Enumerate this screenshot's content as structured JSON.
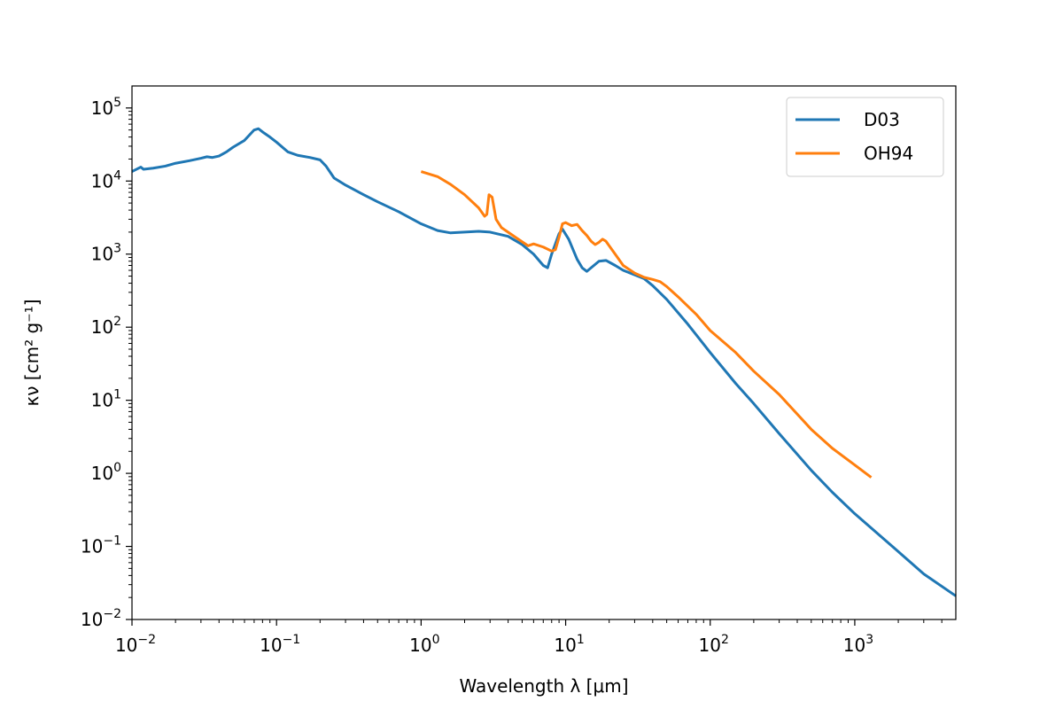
{
  "chart_data": {
    "type": "line",
    "title": "",
    "xlabel": "Wavelength λ [μm]",
    "ylabel": "κν [cm² g⁻¹]",
    "xscale": "log",
    "yscale": "log",
    "xlim": [
      0.01,
      5000
    ],
    "ylim": [
      0.01,
      200000
    ],
    "grid": false,
    "legend": "top-right",
    "x_ticks": [
      {
        "value": 0.01,
        "base": "10",
        "exp": "−2"
      },
      {
        "value": 0.1,
        "base": "10",
        "exp": "−1"
      },
      {
        "value": 1,
        "base": "10",
        "exp": "0"
      },
      {
        "value": 10,
        "base": "10",
        "exp": "1"
      },
      {
        "value": 100,
        "base": "10",
        "exp": "2"
      },
      {
        "value": 1000,
        "base": "10",
        "exp": "3"
      }
    ],
    "y_ticks": [
      {
        "value": 0.01,
        "base": "10",
        "exp": "−2"
      },
      {
        "value": 0.1,
        "base": "10",
        "exp": "−1"
      },
      {
        "value": 1,
        "base": "10",
        "exp": "0"
      },
      {
        "value": 10,
        "base": "10",
        "exp": "1"
      },
      {
        "value": 100,
        "base": "10",
        "exp": "2"
      },
      {
        "value": 1000,
        "base": "10",
        "exp": "3"
      },
      {
        "value": 10000,
        "base": "10",
        "exp": "4"
      },
      {
        "value": 100000,
        "base": "10",
        "exp": "5"
      }
    ],
    "series": [
      {
        "name": "D03",
        "color": "#1f77b4",
        "points": [
          [
            0.01,
            13500
          ],
          [
            0.0115,
            15500
          ],
          [
            0.012,
            14500
          ],
          [
            0.014,
            15000
          ],
          [
            0.017,
            16000
          ],
          [
            0.02,
            17500
          ],
          [
            0.025,
            19000
          ],
          [
            0.03,
            20500
          ],
          [
            0.033,
            21500
          ],
          [
            0.036,
            21000
          ],
          [
            0.04,
            22000
          ],
          [
            0.045,
            25000
          ],
          [
            0.05,
            29000
          ],
          [
            0.06,
            36000
          ],
          [
            0.07,
            50000
          ],
          [
            0.075,
            52000
          ],
          [
            0.08,
            47000
          ],
          [
            0.09,
            40000
          ],
          [
            0.1,
            34000
          ],
          [
            0.12,
            25000
          ],
          [
            0.14,
            22500
          ],
          [
            0.17,
            21000
          ],
          [
            0.2,
            19500
          ],
          [
            0.22,
            16000
          ],
          [
            0.25,
            11000
          ],
          [
            0.3,
            8800
          ],
          [
            0.4,
            6500
          ],
          [
            0.5,
            5200
          ],
          [
            0.7,
            3800
          ],
          [
            1.0,
            2600
          ],
          [
            1.3,
            2100
          ],
          [
            1.6,
            1950
          ],
          [
            2.0,
            2000
          ],
          [
            2.5,
            2050
          ],
          [
            3.0,
            2000
          ],
          [
            4.0,
            1750
          ],
          [
            5.0,
            1350
          ],
          [
            6.0,
            1000
          ],
          [
            7.0,
            700
          ],
          [
            7.5,
            650
          ],
          [
            8.0,
            1000
          ],
          [
            9.0,
            1900
          ],
          [
            9.5,
            2200
          ],
          [
            10.5,
            1600
          ],
          [
            12.0,
            850
          ],
          [
            13.0,
            650
          ],
          [
            14.0,
            580
          ],
          [
            15.0,
            650
          ],
          [
            17.0,
            800
          ],
          [
            19.0,
            820
          ],
          [
            22.0,
            700
          ],
          [
            25.0,
            600
          ],
          [
            30.0,
            520
          ],
          [
            35.0,
            460
          ],
          [
            40.0,
            370
          ],
          [
            50.0,
            240
          ],
          [
            70.0,
            110
          ],
          [
            100.0,
            45
          ],
          [
            150.0,
            17
          ],
          [
            200.0,
            9
          ],
          [
            300.0,
            3.5
          ],
          [
            500.0,
            1.1
          ],
          [
            700.0,
            0.55
          ],
          [
            1000.0,
            0.28
          ],
          [
            2000.0,
            0.085
          ],
          [
            3000.0,
            0.042
          ],
          [
            5000.0,
            0.021
          ]
        ]
      },
      {
        "name": "OH94",
        "color": "#ff7f0e",
        "points": [
          [
            1.0,
            13500
          ],
          [
            1.3,
            11500
          ],
          [
            1.6,
            9000
          ],
          [
            2.0,
            6500
          ],
          [
            2.5,
            4300
          ],
          [
            2.75,
            3300
          ],
          [
            2.85,
            3500
          ],
          [
            2.95,
            6500
          ],
          [
            3.1,
            6000
          ],
          [
            3.3,
            3000
          ],
          [
            3.6,
            2300
          ],
          [
            4.5,
            1700
          ],
          [
            5.5,
            1300
          ],
          [
            6.0,
            1380
          ],
          [
            7.0,
            1250
          ],
          [
            8.0,
            1100
          ],
          [
            8.5,
            1150
          ],
          [
            9.0,
            1700
          ],
          [
            9.5,
            2600
          ],
          [
            10.0,
            2700
          ],
          [
            11.0,
            2450
          ],
          [
            12.0,
            2550
          ],
          [
            13.0,
            2100
          ],
          [
            14.0,
            1800
          ],
          [
            15.0,
            1500
          ],
          [
            16.0,
            1350
          ],
          [
            17.0,
            1450
          ],
          [
            18.0,
            1600
          ],
          [
            19.0,
            1500
          ],
          [
            22.0,
            1000
          ],
          [
            25.0,
            700
          ],
          [
            30.0,
            550
          ],
          [
            35.0,
            480
          ],
          [
            40.0,
            450
          ],
          [
            45.0,
            420
          ],
          [
            50.0,
            360
          ],
          [
            60.0,
            260
          ],
          [
            80.0,
            150
          ],
          [
            100.0,
            90
          ],
          [
            150.0,
            45
          ],
          [
            200.0,
            25
          ],
          [
            300.0,
            12
          ],
          [
            500.0,
            4.0
          ],
          [
            700.0,
            2.2
          ],
          [
            1000.0,
            1.3
          ],
          [
            1300.0,
            0.88
          ]
        ]
      }
    ]
  }
}
